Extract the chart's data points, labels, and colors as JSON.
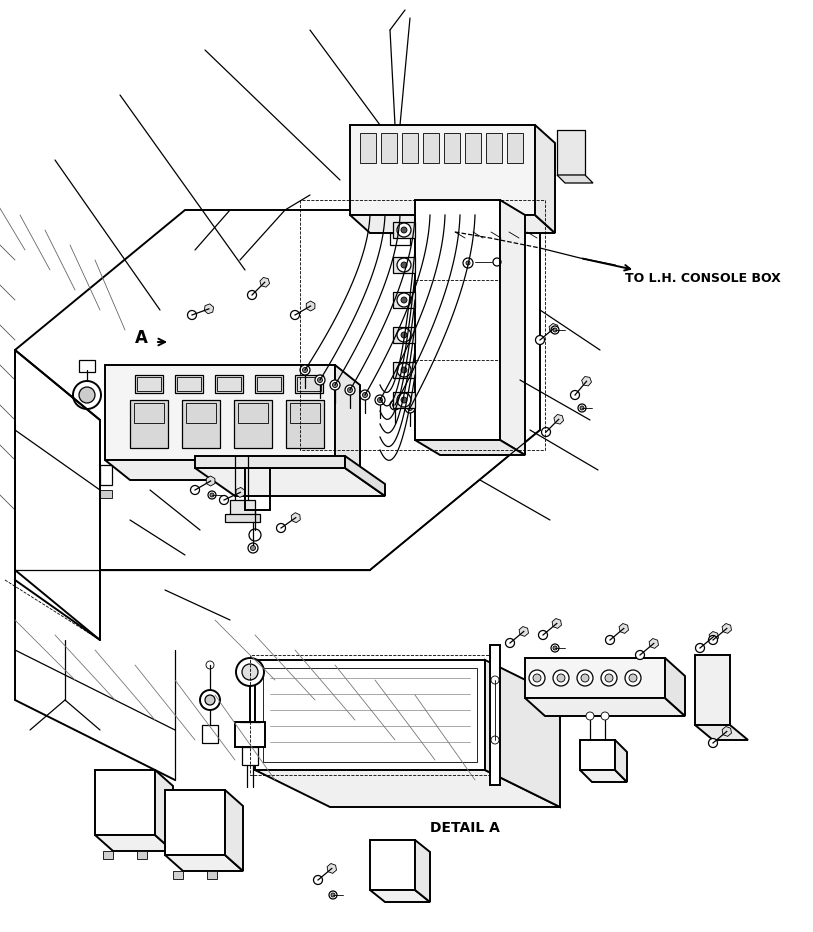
{
  "bg_color": "#ffffff",
  "line_color": "#000000",
  "text_color": "#000000",
  "label_A": "A",
  "label_detail": "DETAIL A",
  "label_console": "TO L.H. CONSOLE BOX",
  "figsize": [
    8.13,
    9.32
  ],
  "dpi": 100
}
